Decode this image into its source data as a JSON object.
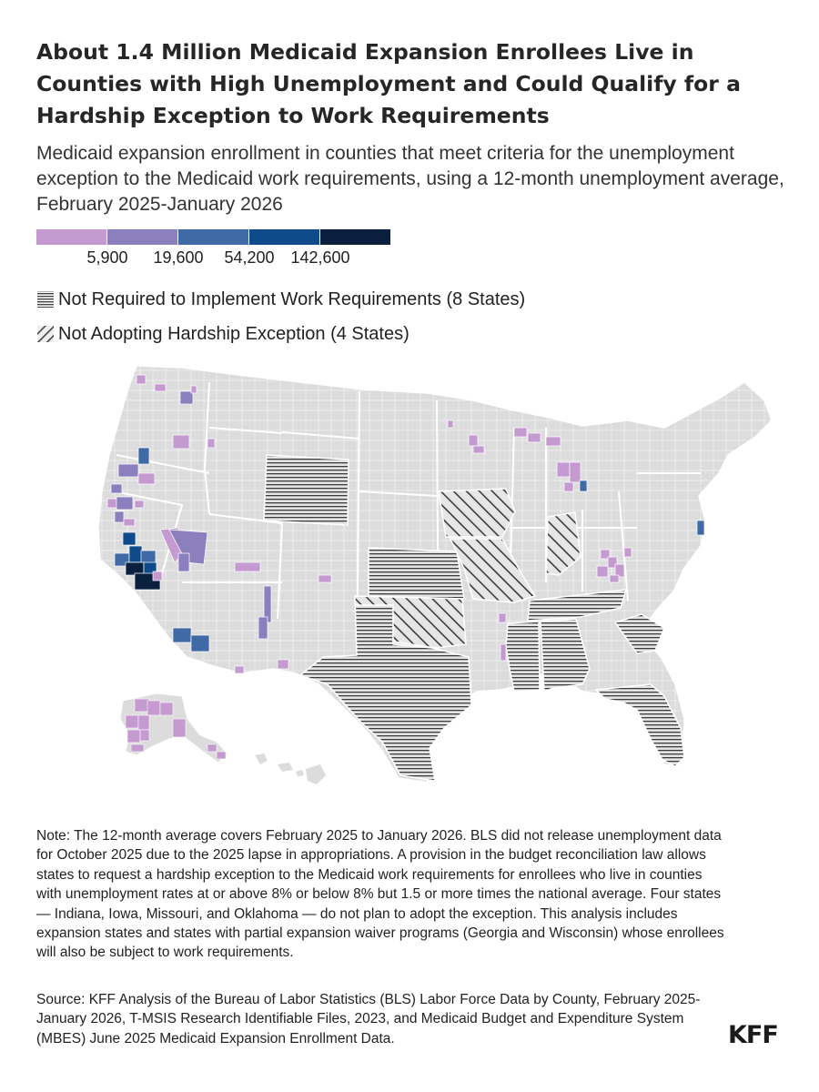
{
  "title": "About 1.4 Million Medicaid Expansion Enrollees Live in Counties with High Unemployment and Could Qualify for a Hardship Exception to Work Requirements",
  "subtitle": "Medicaid expansion enrollment in counties that meet criteria for the unemployment exception to the Medicaid work requirements, using a 12-month unemployment average, February 2025-January 2026",
  "legend": {
    "colors": [
      "#c49ad0",
      "#8b80bd",
      "#3f6aa6",
      "#0f4a8a",
      "#0b1f3e"
    ],
    "ticks": [
      "5,900",
      "19,600",
      "54,200",
      "142,600"
    ],
    "not_required_label": "Not Required to Implement Work Requirements (8 States)",
    "not_adopting_label": "Not Adopting Hardship Exception (4 States)"
  },
  "map": {
    "base_color": "#dcdcdc",
    "border_color": "#ffffff",
    "not_required_states": [
      "Wyoming",
      "Kansas",
      "Texas",
      "Tennessee",
      "Mississippi",
      "Alabama",
      "South Carolina",
      "Florida"
    ],
    "not_adopting_states": [
      "Iowa",
      "Missouri",
      "Indiana",
      "Oklahoma"
    ]
  },
  "note": "Note: The 12-month average covers February 2025 to January 2026. BLS did not release unemployment data for October 2025 due to the 2025 lapse in appropriations. A provision in the budget reconciliation law allows states to request a hardship exception to the Medicaid work requirements for enrollees who live in counties with unemployment rates at or above 8% or below 8% but 1.5 or more times the national average. Four states — Indiana, Iowa, Missouri, and Oklahoma — do not plan to adopt the exception. This analysis includes expansion states and states with partial expansion waiver programs (Georgia and Wisconsin) whose enrollees will also be subject to work requirements.",
  "source": "Source: KFF Analysis of the Bureau of Labor Statistics (BLS) Labor Force Data by County, February 2025-January 2026, T-MSIS Research Identifiable Files, 2023, and Medicaid Budget and Expenditure System (MBES) June 2025 Medicaid Expansion Enrollment Data.",
  "logo": "KFF"
}
